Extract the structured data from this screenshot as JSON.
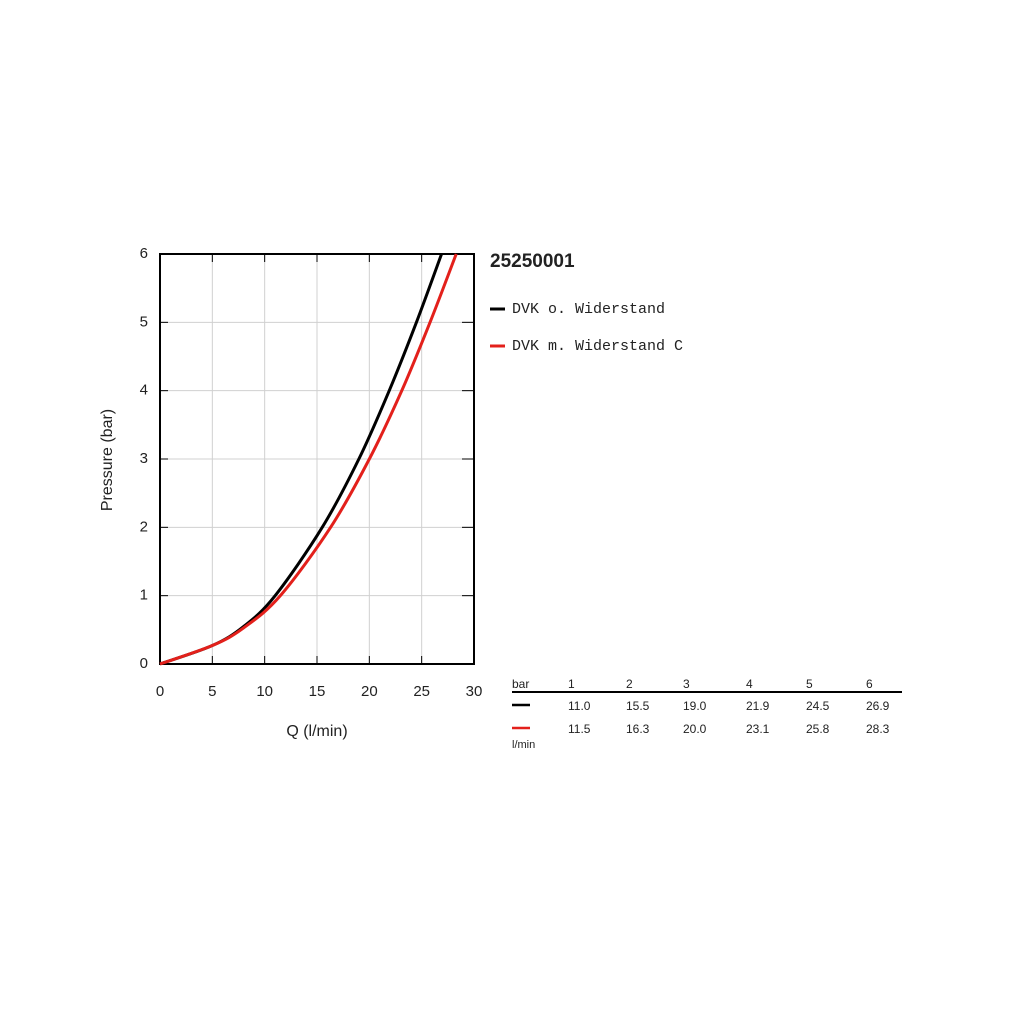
{
  "chart_data": {
    "type": "line",
    "title": "25250001",
    "x_label": "Q (l/min)",
    "y_label": "Pressure (bar)",
    "xlim": [
      0,
      30
    ],
    "ylim": [
      0,
      6
    ],
    "xticks": [
      0,
      5,
      10,
      15,
      20,
      25,
      30
    ],
    "yticks": [
      0,
      1,
      2,
      3,
      4,
      5,
      6
    ],
    "grid": true,
    "series": [
      {
        "name": "DVK o. Widerstand",
        "color": "#000000",
        "x": [
          0,
          5,
          8,
          11.0,
          15.5,
          19.0,
          21.9,
          24.5,
          26.9
        ],
        "values": [
          0,
          0.27,
          0.55,
          1,
          2,
          3,
          4,
          5,
          6
        ]
      },
      {
        "name": "DVK m. Widerstand C",
        "color": "#e3201b",
        "x": [
          0,
          5,
          8,
          11.5,
          16.3,
          20.0,
          23.1,
          25.8,
          28.3
        ],
        "values": [
          0,
          0.27,
          0.53,
          1,
          2,
          3,
          4,
          5,
          6
        ]
      }
    ]
  },
  "table": {
    "header": [
      "bar",
      "1",
      "2",
      "3",
      "4",
      "5",
      "6"
    ],
    "unit": "l/min",
    "rows": [
      [
        "11.0",
        "15.5",
        "19.0",
        "21.9",
        "24.5",
        "26.9"
      ],
      [
        "11.5",
        "16.3",
        "20.0",
        "23.1",
        "25.8",
        "28.3"
      ]
    ]
  }
}
